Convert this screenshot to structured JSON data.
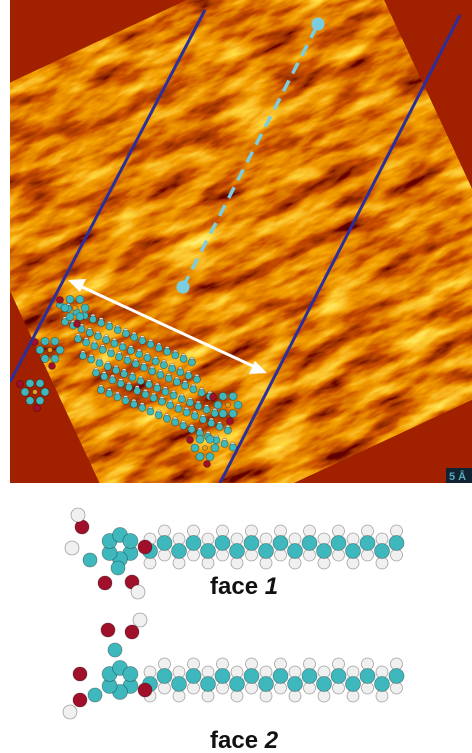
{
  "image": {
    "scale_label": "5 Å"
  },
  "models": [
    {
      "label": "face",
      "number": "1"
    },
    {
      "label": "face",
      "number": "2"
    }
  ]
}
